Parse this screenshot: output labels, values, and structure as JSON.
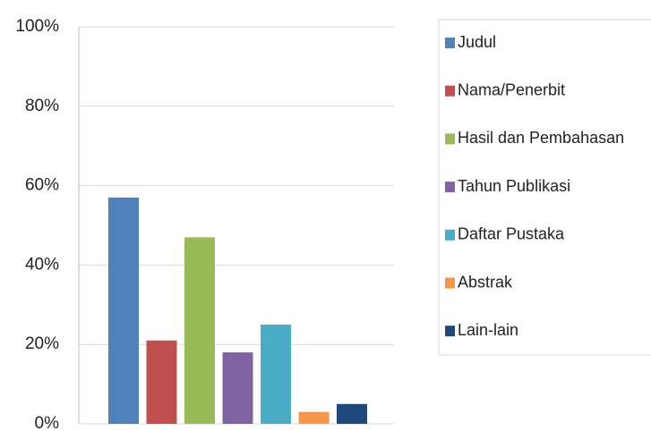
{
  "chart_data": {
    "type": "bar",
    "series": [
      {
        "name": "Judul",
        "color": "#4f81bd",
        "values": [
          57
        ]
      },
      {
        "name": "Nama/Penerbit",
        "color": "#c0504d",
        "values": [
          21
        ]
      },
      {
        "name": "Hasil dan Pembahasan",
        "color": "#9bbb59",
        "values": [
          47
        ]
      },
      {
        "name": "Tahun Publikasi",
        "color": "#8064a2",
        "values": [
          18
        ]
      },
      {
        "name": "Daftar Pustaka",
        "color": "#4bacc6",
        "values": [
          25
        ]
      },
      {
        "name": "Abstrak",
        "color": "#f79646",
        "values": [
          3
        ]
      },
      {
        "name": "Lain-lain",
        "color": "#1f497d",
        "values": [
          5
        ]
      }
    ],
    "ylim": [
      0,
      100
    ],
    "yticks": [
      {
        "value": 0,
        "label": "0%"
      },
      {
        "value": 20,
        "label": "20%"
      },
      {
        "value": 40,
        "label": "40%"
      },
      {
        "value": 60,
        "label": "60%"
      },
      {
        "value": 80,
        "label": "80%"
      },
      {
        "value": 100,
        "label": "100%"
      }
    ],
    "grid": true,
    "legend": "right"
  }
}
